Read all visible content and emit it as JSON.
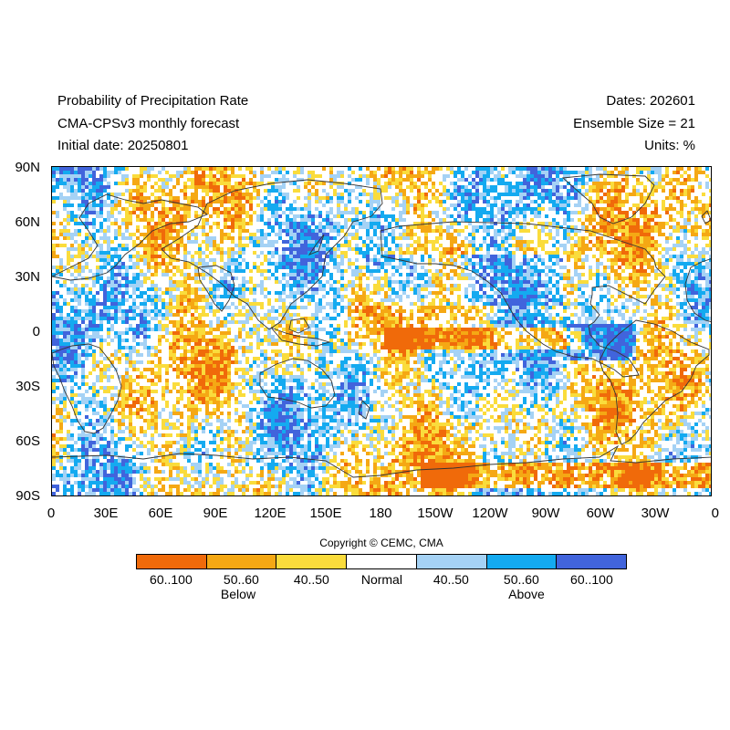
{
  "header": {
    "title_line1": "Probability of Precipitation Rate",
    "title_line2": "CMA-CPSv3 monthly forecast",
    "title_line3": "Initial date: 20250801",
    "dates": "Dates: 202601",
    "ensemble": "Ensemble Size = 21",
    "units": "Units: %"
  },
  "map": {
    "lat_labels": [
      "90N",
      "60N",
      "30N",
      "0",
      "30S",
      "60S",
      "90S"
    ],
    "lon_labels": [
      "0",
      "30E",
      "60E",
      "90E",
      "120E",
      "150E",
      "180",
      "150W",
      "120W",
      "90W",
      "60W",
      "30W",
      "0"
    ],
    "coastline_color": "#333333"
  },
  "copyright": "Copyright © CEMC, CMA",
  "legend": {
    "categories": [
      {
        "label": "60..100",
        "color": "#F06A0A"
      },
      {
        "label": "50..60",
        "color": "#F5A814"
      },
      {
        "label": "40..50",
        "color": "#FADC3C"
      },
      {
        "label": "Normal",
        "color": "#FFFFFF"
      },
      {
        "label": "40..50",
        "color": "#A5D2F5"
      },
      {
        "label": "50..60",
        "color": "#14AAF0"
      },
      {
        "label": "60..100",
        "color": "#4164DC"
      }
    ],
    "below_label": "Below",
    "above_label": "Above"
  }
}
